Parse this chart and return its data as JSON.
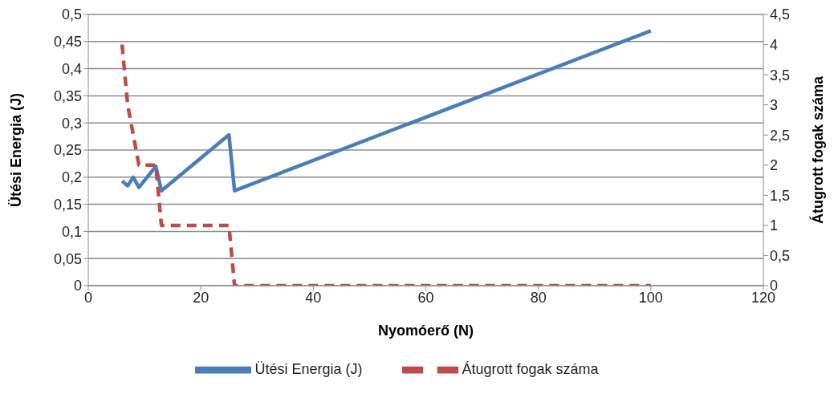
{
  "chart_data": {
    "type": "line",
    "xlabel": "Nyomóerő (N)",
    "ylabel": "Ütési Energia (J)",
    "y2label": "Átugrott fogak száma",
    "xlim": [
      0,
      120
    ],
    "xticks": [
      0,
      20,
      40,
      60,
      80,
      100,
      120
    ],
    "ylim": [
      0,
      0.5
    ],
    "yticks": [
      0,
      {
        "value": 0.05,
        "label": "0,05"
      },
      {
        "value": 0.1,
        "label": "0,1"
      },
      {
        "value": 0.15,
        "label": "0,15"
      },
      {
        "value": 0.2,
        "label": "0,2"
      },
      {
        "value": 0.25,
        "label": "0,25"
      },
      {
        "value": 0.3,
        "label": "0,3"
      },
      {
        "value": 0.35,
        "label": "0,35"
      },
      {
        "value": 0.4,
        "label": "0,4"
      },
      {
        "value": 0.45,
        "label": "0,45"
      },
      {
        "value": 0.5,
        "label": "0,5"
      }
    ],
    "y2lim": [
      0,
      4.5
    ],
    "y2ticks": [
      0,
      {
        "value": 0.5,
        "label": "0,5"
      },
      1,
      {
        "value": 1.5,
        "label": "1,5"
      },
      2,
      {
        "value": 2.5,
        "label": "2,5"
      },
      3,
      {
        "value": 3.5,
        "label": "3,5"
      },
      4,
      {
        "value": 4.5,
        "label": "4,5"
      }
    ],
    "grid": "y",
    "legend": "bottom",
    "marker": "none",
    "series": [
      {
        "name": "Ütési Energia (J)",
        "color": "#4a7ebb",
        "line_style": "solid",
        "x": [
          6,
          7,
          8,
          9,
          12,
          13,
          25,
          26,
          100
        ],
        "values": [
          0.193,
          0.184,
          0.2,
          0.181,
          0.22,
          0.175,
          0.278,
          0.175,
          0.47
        ]
      },
      {
        "name": "Átugrott fogak száma",
        "color": "#be4b48",
        "line_style": "dashed",
        "axis": "y2",
        "x": [
          6,
          7,
          9,
          10,
          12,
          13,
          25,
          26,
          100
        ],
        "values": [
          4,
          3,
          2,
          2,
          2,
          1,
          1,
          0,
          0
        ]
      }
    ]
  }
}
